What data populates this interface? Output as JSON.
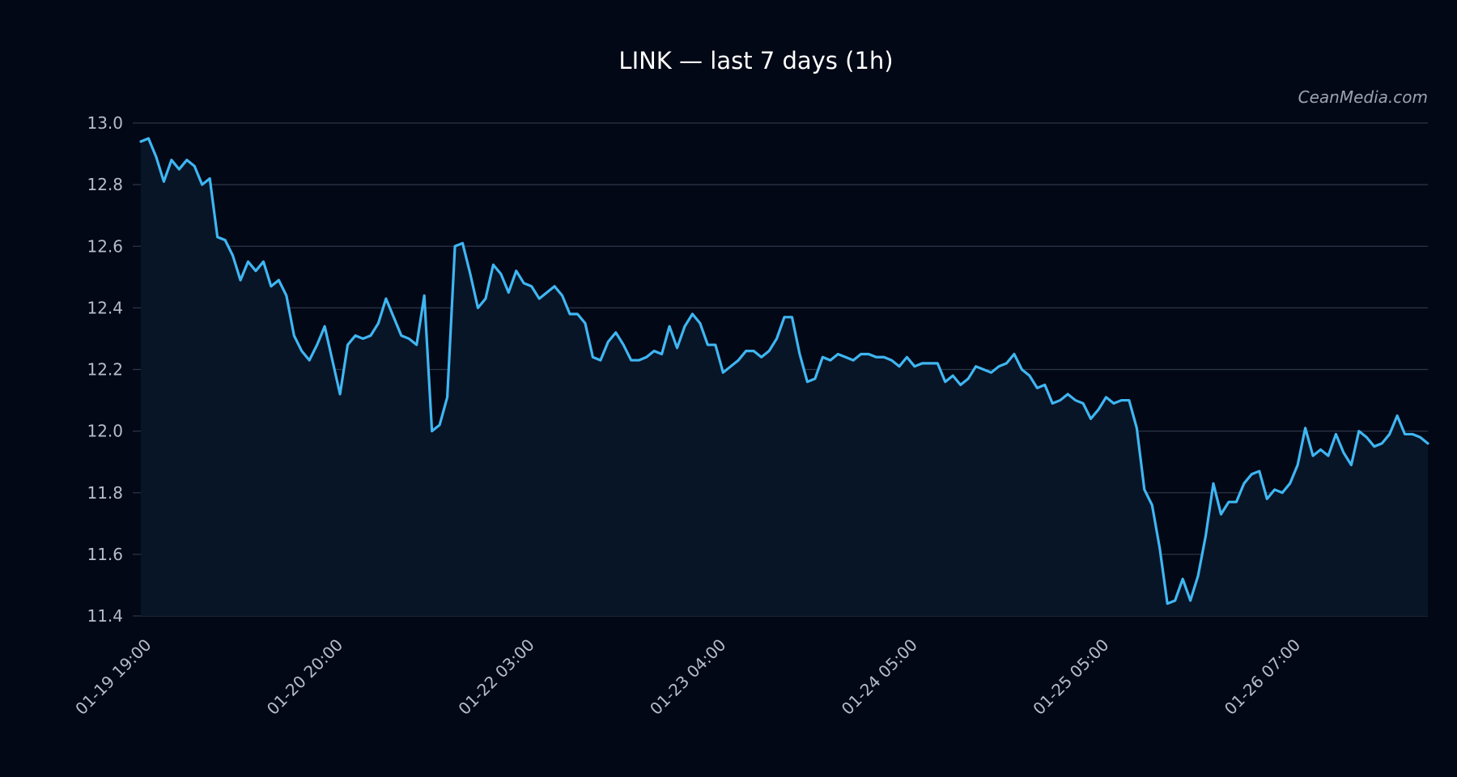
{
  "chart_data": {
    "type": "area",
    "title": "LINK — last 7 days (1h)",
    "watermark": "CeanMedia.com",
    "xlabel": "",
    "ylabel": "",
    "ylim": [
      11.4,
      13.0
    ],
    "yticks": [
      "11.4",
      "11.6",
      "11.8",
      "12.0",
      "12.2",
      "12.4",
      "12.6",
      "12.8",
      "13.0"
    ],
    "xticks": [
      {
        "index": 0,
        "label": "01-19 19:00"
      },
      {
        "index": 25,
        "label": "01-20 20:00"
      },
      {
        "index": 50,
        "label": "01-22 03:00"
      },
      {
        "index": 75,
        "label": "01-23 04:00"
      },
      {
        "index": 100,
        "label": "01-24 05:00"
      },
      {
        "index": 125,
        "label": "01-25 05:00"
      },
      {
        "index": 150,
        "label": "01-26 07:00"
      }
    ],
    "grid": true,
    "colors": {
      "line": "#3fb6f2",
      "fill": "#081527",
      "grid": "#2c3547",
      "background": "#020816"
    },
    "series": [
      {
        "values": [
          12.94,
          12.95,
          12.89,
          12.81,
          12.88,
          12.85,
          12.88,
          12.86,
          12.8,
          12.82,
          12.63,
          12.62,
          12.57,
          12.49,
          12.55,
          12.52,
          12.55,
          12.47,
          12.49,
          12.44,
          12.31,
          12.26,
          12.23,
          12.28,
          12.34,
          12.23,
          12.12,
          12.28,
          12.31,
          12.3,
          12.31,
          12.35,
          12.43,
          12.37,
          12.31,
          12.3,
          12.28,
          12.44,
          12.0,
          12.02,
          12.11,
          12.6,
          12.61,
          12.51,
          12.4,
          12.43,
          12.54,
          12.51,
          12.45,
          12.52,
          12.48,
          12.47,
          12.43,
          12.45,
          12.47,
          12.44,
          12.38,
          12.38,
          12.35,
          12.24,
          12.23,
          12.29,
          12.32,
          12.28,
          12.23,
          12.23,
          12.24,
          12.26,
          12.25,
          12.34,
          12.27,
          12.34,
          12.38,
          12.35,
          12.28,
          12.28,
          12.19,
          12.21,
          12.23,
          12.26,
          12.26,
          12.24,
          12.26,
          12.3,
          12.37,
          12.37,
          12.25,
          12.16,
          12.17,
          12.24,
          12.23,
          12.25,
          12.24,
          12.23,
          12.25,
          12.25,
          12.24,
          12.24,
          12.23,
          12.21,
          12.24,
          12.21,
          12.22,
          12.22,
          12.22,
          12.16,
          12.18,
          12.15,
          12.17,
          12.21,
          12.2,
          12.19,
          12.21,
          12.22,
          12.25,
          12.2,
          12.18,
          12.14,
          12.15,
          12.09,
          12.1,
          12.12,
          12.1,
          12.09,
          12.04,
          12.07,
          12.11,
          12.09,
          12.1,
          12.1,
          12.01,
          11.81,
          11.76,
          11.62,
          11.44,
          11.45,
          11.52,
          11.45,
          11.53,
          11.66,
          11.83,
          11.73,
          11.77,
          11.77,
          11.83,
          11.86,
          11.87,
          11.78,
          11.81,
          11.8,
          11.83,
          11.89,
          12.01,
          11.92,
          11.94,
          11.92,
          11.99,
          11.93,
          11.89,
          12.0,
          11.98,
          11.95,
          11.96,
          11.99,
          12.05,
          11.99,
          11.99,
          11.98,
          11.96
        ]
      }
    ]
  }
}
